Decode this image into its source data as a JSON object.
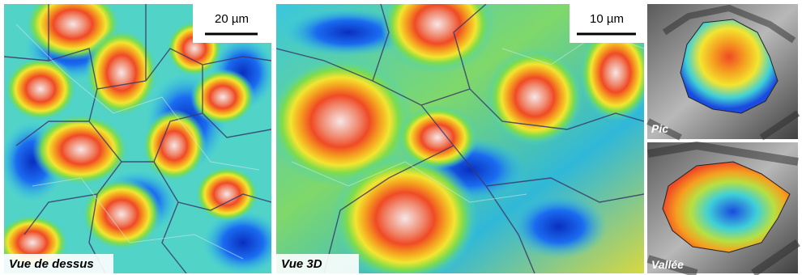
{
  "panels": [
    {
      "label": "Vue de dessus",
      "scale_bar": "20 µm"
    },
    {
      "label": "Vue 3D",
      "scale_bar": "10 µm"
    },
    {
      "label": "Pic"
    },
    {
      "label": "Vallée"
    }
  ]
}
